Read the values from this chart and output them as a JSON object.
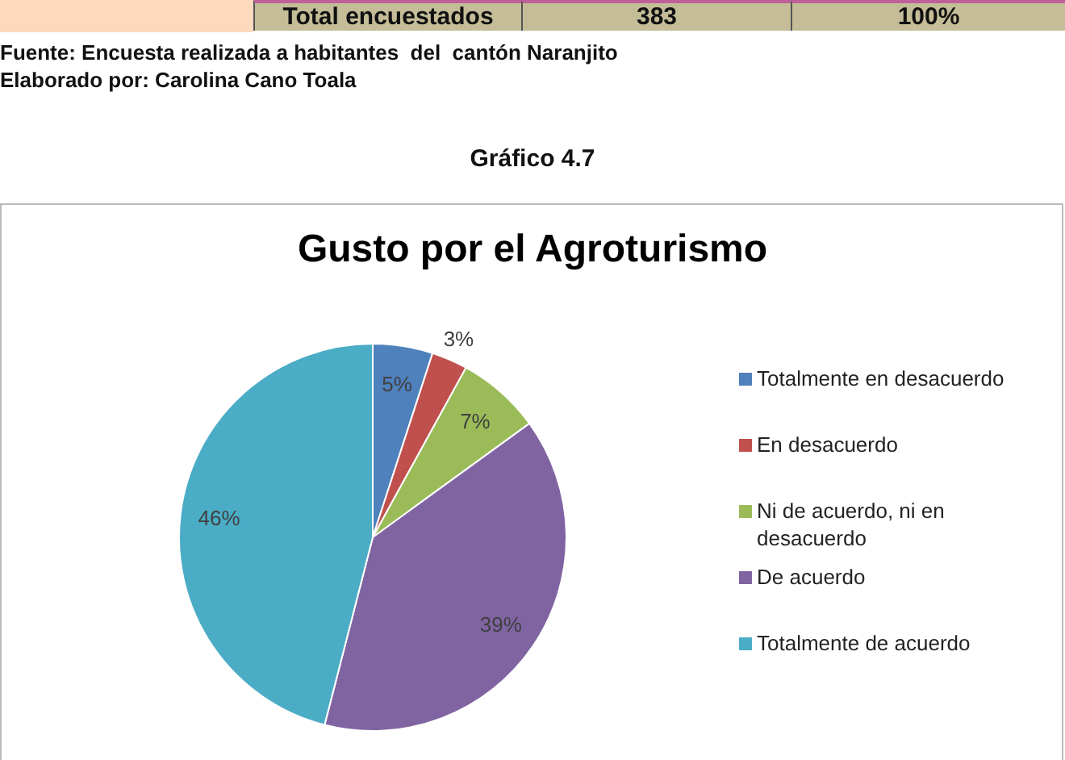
{
  "chart_data": {
    "type": "pie",
    "title": "Gusto por el Agroturismo",
    "categories": [
      "Totalmente en desacuerdo",
      "En desacuerdo",
      "Ni de acuerdo, ni en desacuerdo",
      "De acuerdo",
      "Totalmente de acuerdo"
    ],
    "values": [
      5,
      3,
      7,
      39,
      46
    ],
    "value_labels": [
      "5%",
      "3%",
      "7%",
      "39%",
      "46%"
    ],
    "colors": [
      "#4f81bd",
      "#c0504d",
      "#9bbb59",
      "#8064a2",
      "#4bacc6"
    ],
    "legend": "right",
    "annotations": [
      "Total encuestados",
      "383",
      "100%",
      "Fuente: Encuesta realizada a habitantes  del  cantón Naranjito",
      "Elaborado por: Carolina Cano Toala",
      "Gráfico 4.7"
    ]
  }
}
